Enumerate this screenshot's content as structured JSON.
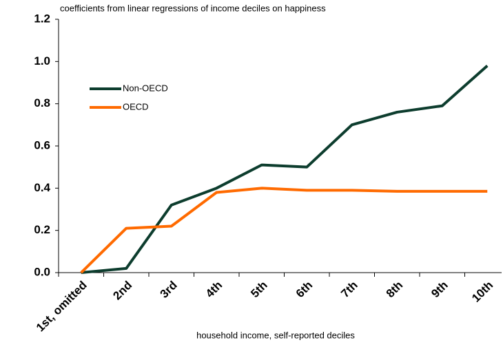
{
  "chart_data": {
    "type": "line",
    "title": "coefficients from linear regressions of income deciles on happiness",
    "x_label": "household income, self-reported deciles",
    "categories": [
      "1st, omitted",
      "2nd",
      "3rd",
      "4th",
      "5th",
      "6th",
      "7th",
      "8th",
      "9th",
      "10th"
    ],
    "series": [
      {
        "name": "Non-OECD",
        "color": "#0d3d2e",
        "values": [
          0,
          0.02,
          0.32,
          0.4,
          0.51,
          0.5,
          0.7,
          0.76,
          0.79,
          0.98
        ]
      },
      {
        "name": "OECD",
        "color": "#ff6a00",
        "values": [
          0,
          0.21,
          0.22,
          0.38,
          0.4,
          0.39,
          0.39,
          0.385,
          0.385,
          0.385
        ]
      }
    ],
    "ylim": [
      0,
      1.2
    ],
    "yticks": [
      {
        "value": 0,
        "label": "0.0"
      },
      0.2,
      0.4,
      0.6,
      0.8,
      {
        "value": 1,
        "label": "1.0"
      },
      1.2
    ],
    "legend": "upper left"
  }
}
